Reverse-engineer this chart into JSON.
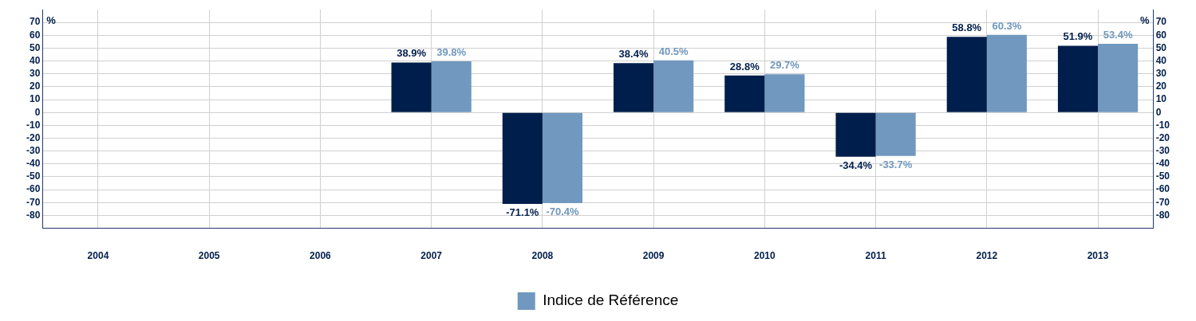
{
  "chart_data": {
    "type": "bar",
    "categories": [
      "2004",
      "2005",
      "2006",
      "2007",
      "2008",
      "2009",
      "2010",
      "2011",
      "2012",
      "2013"
    ],
    "series": [
      {
        "color": "#001e4b",
        "values": [
          null,
          null,
          null,
          38.9,
          -71.1,
          38.4,
          28.8,
          -34.4,
          58.8,
          51.9
        ],
        "value_labels": [
          null,
          null,
          null,
          "38.9%",
          "-71.1%",
          "38.4%",
          "28.8%",
          "-34.4%",
          "58.8%",
          "51.9%"
        ]
      },
      {
        "name": "Indice de Référence",
        "color": "#7198be",
        "values": [
          null,
          null,
          null,
          39.8,
          -70.4,
          40.5,
          29.7,
          -33.7,
          60.3,
          53.4
        ],
        "value_labels": [
          null,
          null,
          null,
          "39.8%",
          "-70.4%",
          "40.5%",
          "29.7%",
          "-33.7%",
          "60.3%",
          "53.4%"
        ]
      }
    ],
    "ylabel": "%",
    "y2label": "%",
    "ylim": [
      -90,
      80
    ],
    "yticks": [
      -80,
      -70,
      -60,
      -50,
      -40,
      -30,
      -20,
      -10,
      0,
      10,
      20,
      30,
      40,
      50,
      60,
      70
    ],
    "y2lim": [
      -90,
      80
    ],
    "y2ticks": [
      -80,
      -70,
      -60,
      -50,
      -40,
      -30,
      -20,
      -10,
      0,
      10,
      20,
      30,
      40,
      50,
      60,
      70
    ],
    "grid": true,
    "legend": "bottom"
  }
}
